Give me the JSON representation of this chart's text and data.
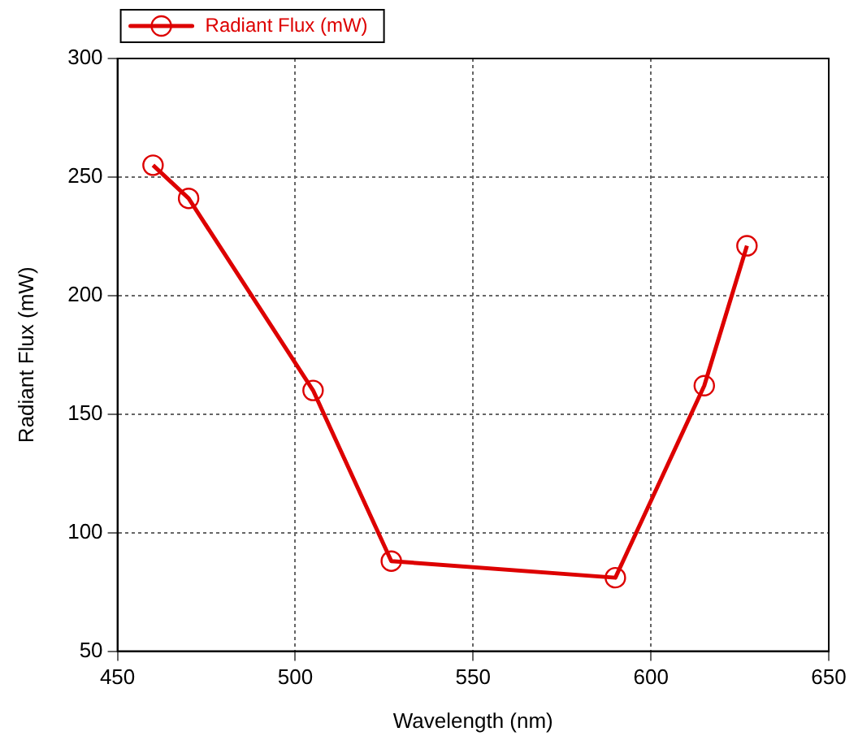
{
  "chart_data": {
    "type": "line",
    "xlabel": "Wavelength (nm)",
    "ylabel": "Radiant Flux (mW)",
    "x": [
      460,
      470,
      505,
      527,
      590,
      615,
      627
    ],
    "series": [
      {
        "name": "Radiant Flux (mW)",
        "color": "#dd0000",
        "values": [
          255,
          241,
          160,
          88,
          81,
          162,
          221
        ]
      }
    ],
    "xlim": [
      450,
      650
    ],
    "xticks": [
      450,
      500,
      550,
      600,
      650
    ],
    "ylim": [
      50,
      300
    ],
    "yticks": [
      50,
      100,
      150,
      200,
      250,
      300
    ],
    "grid": true,
    "legend": "top left",
    "marker": "circle",
    "line_style": "solid"
  }
}
